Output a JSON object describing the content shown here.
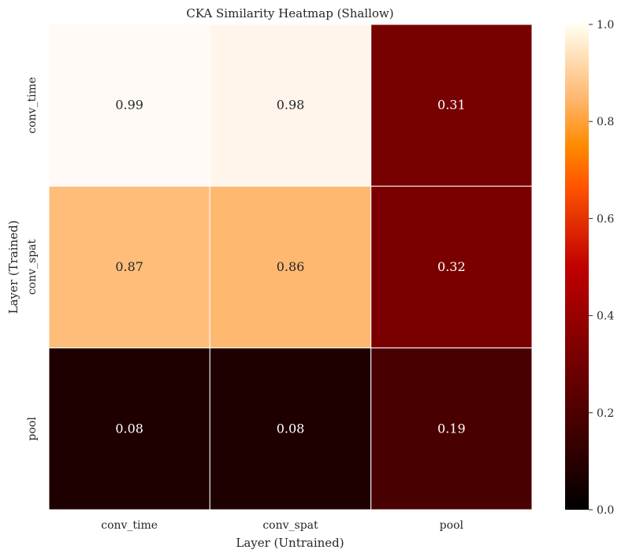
{
  "chart_data": {
    "type": "heatmap",
    "title": "CKA Similarity Heatmap (Shallow)",
    "xlabel": "Layer (Untrained)",
    "ylabel": "Layer (Trained)",
    "x_categories": [
      "conv_time",
      "conv_spat",
      "pool"
    ],
    "y_categories": [
      "conv_time",
      "conv_spat",
      "pool"
    ],
    "values": [
      [
        0.99,
        0.98,
        0.31
      ],
      [
        0.87,
        0.86,
        0.32
      ],
      [
        0.08,
        0.08,
        0.19
      ]
    ],
    "annotations": true,
    "value_format": "2 decimals",
    "colormap": "gist_heat",
    "vmin": 0.0,
    "vmax": 1.0,
    "colorbar": {
      "ticks": [
        0.0,
        0.2,
        0.4,
        0.6,
        0.8,
        1.0
      ],
      "tick_labels": [
        "0.0",
        "0.2",
        "0.4",
        "0.6",
        "0.8",
        "1.0"
      ]
    },
    "cell_border_color": "#ffffff",
    "annotation_colors": {
      "light_cell": "#262626",
      "dark_cell": "#ffffff"
    }
  }
}
